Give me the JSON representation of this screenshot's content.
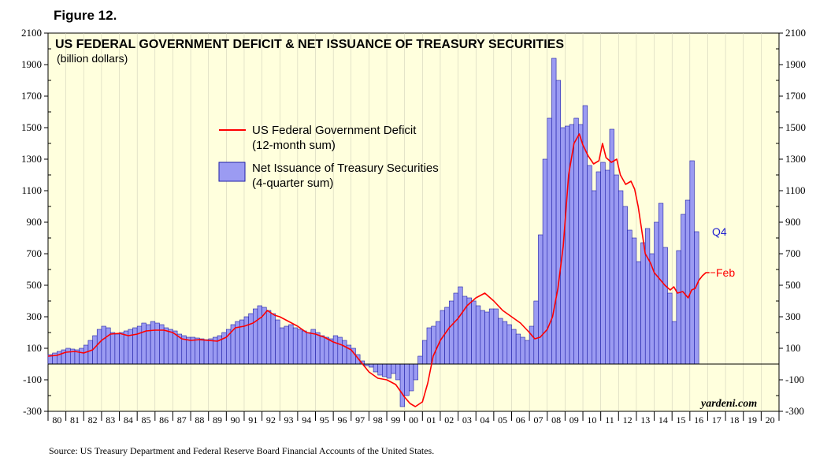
{
  "figure_label": "Figure 12.",
  "source": "Source: US Treasury Department and Federal Reserve Board Financial Accounts of the United States.",
  "chart_data": {
    "type": "bar",
    "title": "US FEDERAL GOVERNMENT DEFICIT & NET ISSUANCE OF TREASURY SECURITIES",
    "subtitle": "(billion dollars)",
    "credit": "yardeni.com",
    "ylim": [
      -300,
      2100
    ],
    "yticks": [
      2100,
      1900,
      1700,
      1500,
      1300,
      1100,
      900,
      700,
      500,
      300,
      100,
      -100,
      -300
    ],
    "xlim": [
      1980,
      2021
    ],
    "xtick_labels": [
      "80",
      "81",
      "82",
      "83",
      "84",
      "85",
      "86",
      "87",
      "88",
      "89",
      "90",
      "91",
      "92",
      "93",
      "94",
      "95",
      "96",
      "97",
      "98",
      "99",
      "00",
      "01",
      "02",
      "03",
      "04",
      "05",
      "06",
      "07",
      "08",
      "09",
      "10",
      "11",
      "12",
      "13",
      "14",
      "15",
      "16",
      "17",
      "18",
      "19",
      "20"
    ],
    "colors": {
      "bars": "#9b9bf2",
      "bar_edge": "#1f1fa8",
      "line": "#ff0000",
      "background": "#ffffdd",
      "q4_label": "#1f1fd0"
    },
    "legend": {
      "line_label": "US Federal Government Deficit",
      "line_sub": "(12-month sum)",
      "bar_label": "Net Issuance of Treasury Securities",
      "bar_sub": "(4-quarter sum)"
    },
    "annotations": {
      "bars_end": "Q4",
      "line_end": "Feb"
    },
    "series": [
      {
        "name": "Net Issuance of Treasury Securities (4-quarter sum)",
        "type": "bar",
        "start": 1980.0,
        "step": 0.25,
        "values": [
          60,
          70,
          80,
          90,
          100,
          95,
          90,
          100,
          120,
          150,
          180,
          220,
          240,
          230,
          200,
          190,
          200,
          210,
          220,
          230,
          240,
          260,
          250,
          270,
          260,
          250,
          230,
          220,
          210,
          190,
          180,
          170,
          170,
          165,
          160,
          155,
          160,
          170,
          180,
          200,
          220,
          250,
          270,
          280,
          300,
          320,
          350,
          370,
          360,
          340,
          320,
          280,
          230,
          240,
          250,
          230,
          220,
          210,
          200,
          220,
          200,
          180,
          170,
          160,
          180,
          170,
          150,
          120,
          100,
          60,
          20,
          -10,
          -20,
          -50,
          -70,
          -80,
          -90,
          -60,
          -100,
          -270,
          -200,
          -170,
          -100,
          50,
          150,
          230,
          240,
          270,
          340,
          360,
          400,
          450,
          490,
          430,
          420,
          400,
          370,
          340,
          330,
          350,
          350,
          290,
          270,
          250,
          220,
          190,
          170,
          150,
          240,
          400,
          820,
          1300,
          1560,
          1940,
          1800,
          1500,
          1510,
          1520,
          1560,
          1520,
          1640,
          1260,
          1100,
          1220,
          1280,
          1230,
          1490,
          1200,
          1100,
          1000,
          850,
          800,
          650,
          770,
          860,
          700,
          900,
          1020,
          740,
          450,
          270,
          720,
          950,
          1040,
          1290,
          840
        ]
      },
      {
        "name": "US Federal Government Deficit (12-month sum)",
        "type": "line",
        "points": [
          [
            1980.0,
            50
          ],
          [
            1980.5,
            55
          ],
          [
            1981.0,
            75
          ],
          [
            1981.5,
            80
          ],
          [
            1982.0,
            70
          ],
          [
            1982.5,
            90
          ],
          [
            1983.0,
            150
          ],
          [
            1983.5,
            190
          ],
          [
            1984.0,
            195
          ],
          [
            1984.5,
            180
          ],
          [
            1985.0,
            190
          ],
          [
            1985.5,
            210
          ],
          [
            1986.0,
            215
          ],
          [
            1986.5,
            215
          ],
          [
            1987.0,
            200
          ],
          [
            1987.5,
            160
          ],
          [
            1988.0,
            150
          ],
          [
            1988.5,
            155
          ],
          [
            1989.0,
            150
          ],
          [
            1989.5,
            145
          ],
          [
            1990.0,
            170
          ],
          [
            1990.5,
            230
          ],
          [
            1991.0,
            240
          ],
          [
            1991.5,
            260
          ],
          [
            1992.0,
            300
          ],
          [
            1992.3,
            340
          ],
          [
            1992.7,
            310
          ],
          [
            1993.0,
            300
          ],
          [
            1993.5,
            270
          ],
          [
            1994.0,
            240
          ],
          [
            1994.5,
            200
          ],
          [
            1995.0,
            190
          ],
          [
            1995.5,
            170
          ],
          [
            1996.0,
            140
          ],
          [
            1996.5,
            120
          ],
          [
            1997.0,
            90
          ],
          [
            1997.5,
            20
          ],
          [
            1998.0,
            -50
          ],
          [
            1998.5,
            -90
          ],
          [
            1999.0,
            -100
          ],
          [
            1999.5,
            -130
          ],
          [
            2000.0,
            -210
          ],
          [
            2000.3,
            -250
          ],
          [
            2000.6,
            -270
          ],
          [
            2001.0,
            -240
          ],
          [
            2001.3,
            -120
          ],
          [
            2001.6,
            50
          ],
          [
            2002.0,
            150
          ],
          [
            2002.5,
            230
          ],
          [
            2003.0,
            290
          ],
          [
            2003.5,
            370
          ],
          [
            2004.0,
            420
          ],
          [
            2004.5,
            450
          ],
          [
            2005.0,
            400
          ],
          [
            2005.5,
            340
          ],
          [
            2006.0,
            300
          ],
          [
            2006.5,
            260
          ],
          [
            2007.0,
            200
          ],
          [
            2007.3,
            160
          ],
          [
            2007.6,
            170
          ],
          [
            2008.0,
            220
          ],
          [
            2008.3,
            300
          ],
          [
            2008.6,
            480
          ],
          [
            2008.9,
            750
          ],
          [
            2009.2,
            1200
          ],
          [
            2009.5,
            1400
          ],
          [
            2009.8,
            1460
          ],
          [
            2010.0,
            1390
          ],
          [
            2010.3,
            1320
          ],
          [
            2010.6,
            1270
          ],
          [
            2010.9,
            1290
          ],
          [
            2011.1,
            1400
          ],
          [
            2011.3,
            1310
          ],
          [
            2011.6,
            1280
          ],
          [
            2011.9,
            1300
          ],
          [
            2012.1,
            1200
          ],
          [
            2012.4,
            1140
          ],
          [
            2012.7,
            1160
          ],
          [
            2012.9,
            1110
          ],
          [
            2013.1,
            1000
          ],
          [
            2013.3,
            850
          ],
          [
            2013.5,
            700
          ],
          [
            2013.8,
            640
          ],
          [
            2014.0,
            580
          ],
          [
            2014.3,
            540
          ],
          [
            2014.6,
            500
          ],
          [
            2014.9,
            470
          ],
          [
            2015.1,
            490
          ],
          [
            2015.3,
            450
          ],
          [
            2015.6,
            460
          ],
          [
            2015.9,
            420
          ],
          [
            2016.1,
            470
          ],
          [
            2016.3,
            480
          ],
          [
            2016.5,
            530
          ],
          [
            2016.7,
            560
          ],
          [
            2016.9,
            580
          ],
          [
            2017.1,
            580
          ]
        ]
      }
    ]
  }
}
